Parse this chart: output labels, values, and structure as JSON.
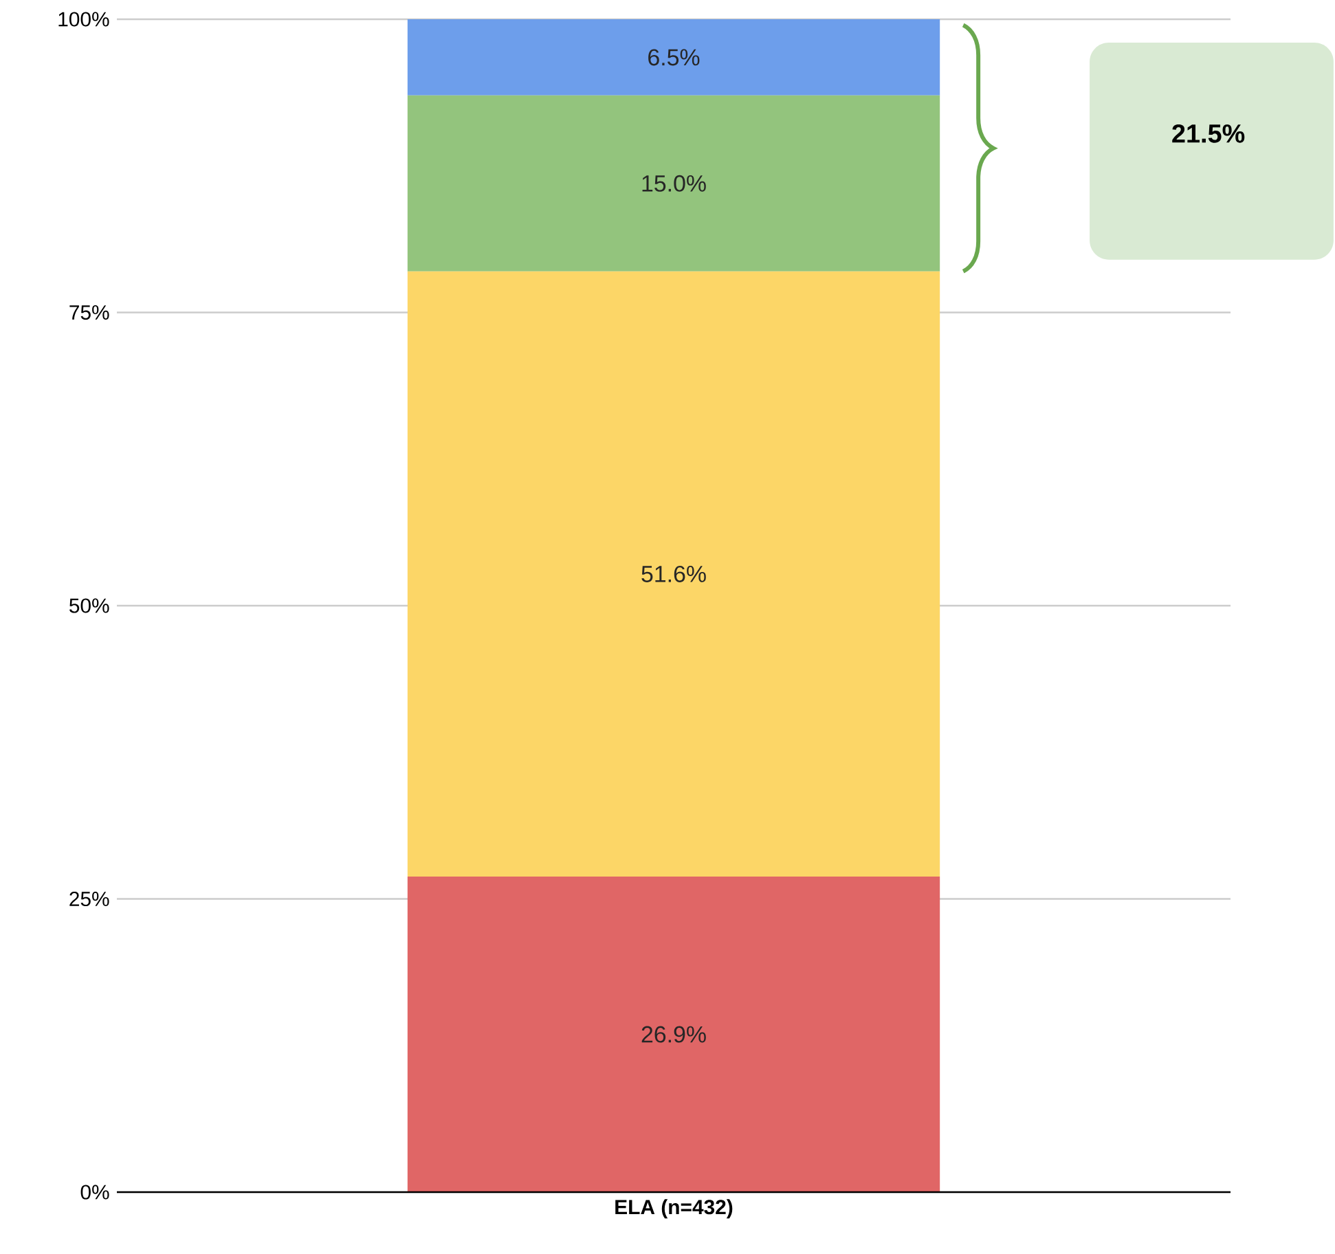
{
  "chart_data": {
    "type": "bar",
    "stacked": true,
    "categories": [
      "ELA (n=432)"
    ],
    "series": [
      {
        "color": "#e06666",
        "values": [
          26.9
        ],
        "value_labels": [
          "26.9%"
        ]
      },
      {
        "color": "#fcd667",
        "values": [
          51.6
        ],
        "value_labels": [
          "51.6%"
        ]
      },
      {
        "color": "#93c47d",
        "values": [
          15.0
        ],
        "value_labels": [
          "15.0%"
        ]
      },
      {
        "color": "#6d9eeb",
        "values": [
          6.5
        ],
        "value_labels": [
          "6.5%"
        ]
      }
    ],
    "ylim": [
      0,
      100
    ],
    "yticks": [
      {
        "value": 0,
        "label": "0%"
      },
      {
        "value": 25,
        "label": "25%"
      },
      {
        "value": 50,
        "label": "50%"
      },
      {
        "value": 75,
        "label": "75%"
      },
      {
        "value": 100,
        "label": "100%"
      }
    ],
    "grid": "y",
    "annotations": [
      "21.5%"
    ]
  }
}
